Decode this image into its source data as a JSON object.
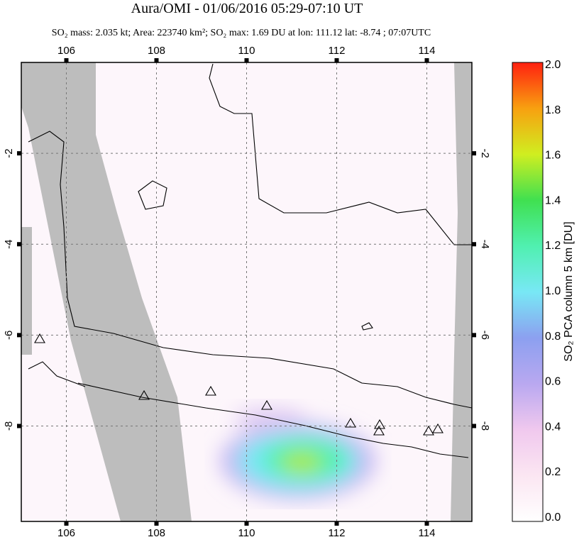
{
  "map": {
    "title": "Aura/OMI - 01/06/2016 05:29-07:10 UT",
    "subtitle": "SO₂ mass: 2.035 kt; Area: 223740 km²; SO₂ max: 1.69 DU at lon: 111.12 lat: -8.74 ; 07:07UTC",
    "xlim": [
      105,
      115
    ],
    "ylim": [
      -10.1,
      0
    ],
    "xticks": [
      106,
      108,
      110,
      112,
      114
    ],
    "yticks": [
      -2,
      -4,
      -6,
      -8
    ],
    "grid": true,
    "colorbar": {
      "label": "SO₂ PCA column 5 km [DU]",
      "lim": [
        0,
        2
      ],
      "ticks": [
        {
          "value": 0,
          "label": "0.0"
        },
        {
          "value": 0.2,
          "label": "0.2"
        },
        {
          "value": 0.4,
          "label": "0.4"
        },
        {
          "value": 0.6,
          "label": "0.6"
        },
        {
          "value": 0.8,
          "label": "0.8"
        },
        {
          "value": 1,
          "label": "1.0"
        },
        {
          "value": 1.2,
          "label": "1.2"
        },
        {
          "value": 1.4,
          "label": "1.4"
        },
        {
          "value": 1.6,
          "label": "1.6"
        },
        {
          "value": 1.8,
          "label": "1.8"
        },
        {
          "value": 2,
          "label": "2.0"
        }
      ]
    }
  }
}
